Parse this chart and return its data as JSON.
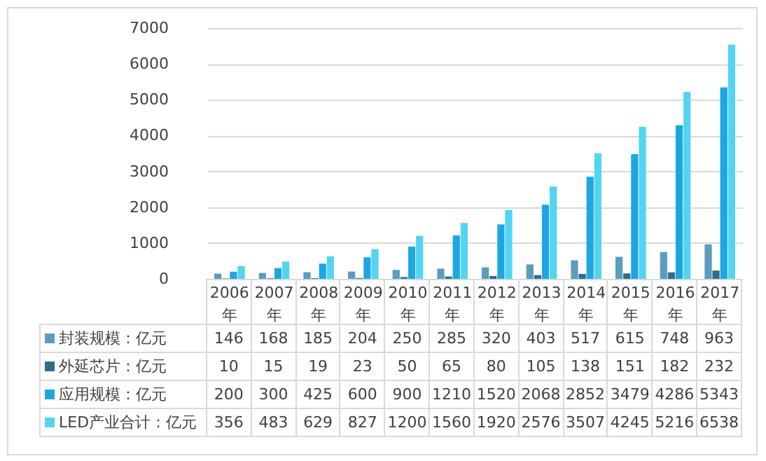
{
  "chart_data": {
    "type": "bar",
    "categories": [
      "2006年",
      "2007年",
      "2008年",
      "2009年",
      "2010年",
      "2011年",
      "2012年",
      "2013年",
      "2014年",
      "2015年",
      "2016年",
      "2017年"
    ],
    "series": [
      {
        "name": "封装规模：亿元",
        "color": "#5b9cbf",
        "values": [
          146,
          168,
          185,
          204,
          250,
          285,
          320,
          403,
          517,
          615,
          748,
          963
        ]
      },
      {
        "name": "外延芯片：亿元",
        "color": "#2f6d8c",
        "values": [
          10,
          15,
          19,
          23,
          50,
          65,
          80,
          105,
          138,
          151,
          182,
          232
        ]
      },
      {
        "name": "应用规模：亿元",
        "color": "#1ea6e3",
        "values": [
          200,
          300,
          425,
          600,
          900,
          1210,
          1520,
          2068,
          2852,
          3479,
          4286,
          5343
        ]
      },
      {
        "name": "LED产业合计：亿元",
        "color": "#52d5f2",
        "values": [
          356,
          483,
          629,
          827,
          1200,
          1560,
          1920,
          2576,
          3507,
          4245,
          5216,
          6538
        ]
      }
    ],
    "ylim": [
      0,
      7000
    ],
    "yticks": [
      0,
      1000,
      2000,
      3000,
      4000,
      5000,
      6000,
      7000
    ],
    "grid": "y",
    "legend": "bottom",
    "data_labels": true
  }
}
